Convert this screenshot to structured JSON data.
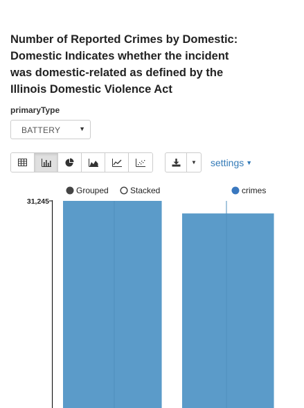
{
  "title": "Number of Reported Crimes by Domestic: Domestic Indicates whether the incident was domestic-related as defined by the Illinois Domestic Violence Act",
  "parameter": {
    "label": "primaryType",
    "selected": "BATTERY"
  },
  "toolbar": {
    "chart_types": [
      {
        "icon": "table-icon",
        "active": false
      },
      {
        "icon": "bar-chart-icon",
        "active": true
      },
      {
        "icon": "pie-chart-icon",
        "active": false
      },
      {
        "icon": "area-chart-icon",
        "active": false
      },
      {
        "icon": "line-chart-icon",
        "active": false
      },
      {
        "icon": "scatter-chart-icon",
        "active": false
      }
    ],
    "download_icon": "download-icon",
    "settings_label": "settings"
  },
  "legend": {
    "grouped_label": "Grouped",
    "stacked_label": "Stacked",
    "mode": "grouped"
  },
  "colors": {
    "bar": "#5b9bc9",
    "legend_dot": "#3a78bf",
    "link": "#337ab7"
  },
  "chart_data": {
    "type": "bar",
    "categories": [
      "",
      ""
    ],
    "series": [
      {
        "name": "crimes",
        "values": [
          31245,
          29350
        ]
      }
    ],
    "ylim": [
      0,
      31245
    ],
    "yticks": [
      "31,245"
    ],
    "grid": true,
    "legend_position": "top"
  }
}
